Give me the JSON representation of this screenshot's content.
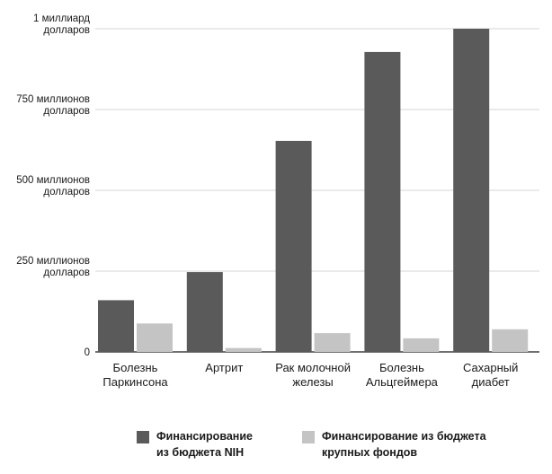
{
  "chart_data": {
    "type": "bar",
    "categories": [
      [
        "Болезнь",
        "Паркинсона"
      ],
      [
        "Артрит"
      ],
      [
        "Рак молочной",
        "железы"
      ],
      [
        "Болезнь",
        "Альцгеймера"
      ],
      [
        "Сахарный",
        "диабет"
      ]
    ],
    "series": [
      {
        "name": "Финансирование из бюджета NIH",
        "values": [
          160,
          247,
          653,
          928,
          1000
        ],
        "color": "#5a5a5a"
      },
      {
        "name": "Финансирование из бюджета крупных фондов",
        "values": [
          88,
          12,
          58,
          42,
          70
        ],
        "color": "#c4c4c4"
      }
    ],
    "yticks": [
      {
        "value": 0,
        "label": [
          "0"
        ]
      },
      {
        "value": 250,
        "label": [
          "250 миллионов",
          "долларов"
        ]
      },
      {
        "value": 500,
        "label": [
          "500 миллионов",
          "долларов"
        ]
      },
      {
        "value": 750,
        "label": [
          "750 миллионов",
          "долларов"
        ]
      },
      {
        "value": 1000,
        "label": [
          "1 миллиард",
          "долларов"
        ]
      }
    ],
    "ylim": [
      0,
      1000
    ],
    "grid": true,
    "legend_position": "bottom",
    "legend": [
      [
        "Финансирование",
        "из бюджета NIH"
      ],
      [
        "Финансирование из бюджета",
        "крупных фондов"
      ]
    ]
  }
}
